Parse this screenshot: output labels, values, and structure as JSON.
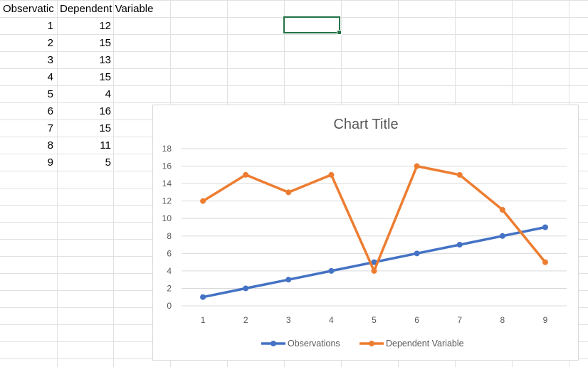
{
  "spreadsheet": {
    "headers": [
      "Observatic",
      "Dependent Variable"
    ],
    "rows": [
      [
        "1",
        "12"
      ],
      [
        "2",
        "15"
      ],
      [
        "3",
        "13"
      ],
      [
        "4",
        "15"
      ],
      [
        "5",
        "4"
      ],
      [
        "6",
        "16"
      ],
      [
        "7",
        "15"
      ],
      [
        "8",
        "11"
      ],
      [
        "9",
        "5"
      ]
    ],
    "colors": {
      "gridline": "#e1e1e1",
      "selection": "#217346"
    }
  },
  "chart_data": {
    "type": "line",
    "title": "Chart Title",
    "x": [
      1,
      2,
      3,
      4,
      5,
      6,
      7,
      8,
      9
    ],
    "series": [
      {
        "name": "Observations",
        "values": [
          1,
          2,
          3,
          4,
          5,
          6,
          7,
          8,
          9
        ],
        "color": "#4472c4"
      },
      {
        "name": "Dependent Variable",
        "values": [
          12,
          15,
          13,
          15,
          4,
          16,
          15,
          11,
          5
        ],
        "color": "#ed7d31"
      }
    ],
    "ylim": [
      0,
      18
    ],
    "yticks": [
      0,
      2,
      4,
      6,
      8,
      10,
      12,
      14,
      16,
      18
    ],
    "grid": true,
    "legend": "bottom"
  }
}
